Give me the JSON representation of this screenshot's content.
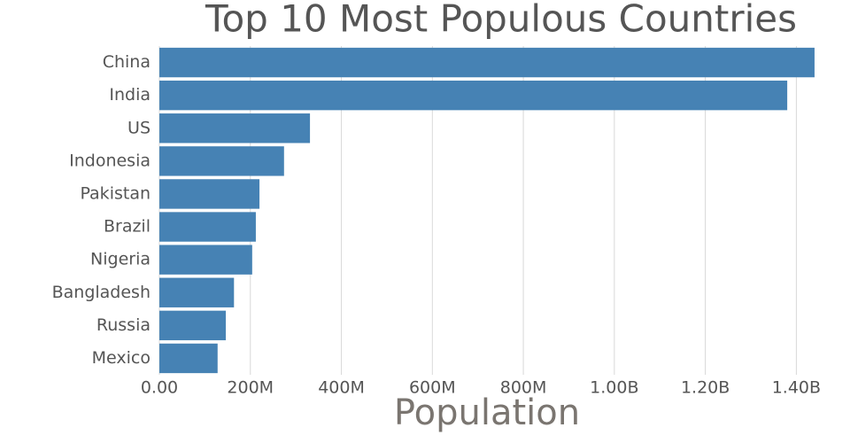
{
  "chart_data": {
    "type": "bar",
    "orientation": "horizontal",
    "title": "Top 10 Most Populous Countries",
    "x_label": "Population",
    "categories": [
      "China",
      "India",
      "US",
      "Indonesia",
      "Pakistan",
      "Brazil",
      "Nigeria",
      "Bangladesh",
      "Russia",
      "Mexico"
    ],
    "values": [
      1440000000,
      1380000000,
      331000000,
      274000000,
      220000000,
      212000000,
      204000000,
      164000000,
      146000000,
      128000000
    ],
    "color": "#4682b4",
    "xlim": [
      0,
      1516000000
    ],
    "xticks": [
      {
        "value": 0,
        "label": "0.00"
      },
      {
        "value": 200000000,
        "label": "200M"
      },
      {
        "value": 400000000,
        "label": "400M"
      },
      {
        "value": 600000000,
        "label": "600M"
      },
      {
        "value": 800000000,
        "label": "800M"
      },
      {
        "value": 1000000000,
        "label": "1.00B"
      },
      {
        "value": 1200000000,
        "label": "1.20B"
      },
      {
        "value": 1400000000,
        "label": "1.40B"
      }
    ],
    "grid": true
  }
}
